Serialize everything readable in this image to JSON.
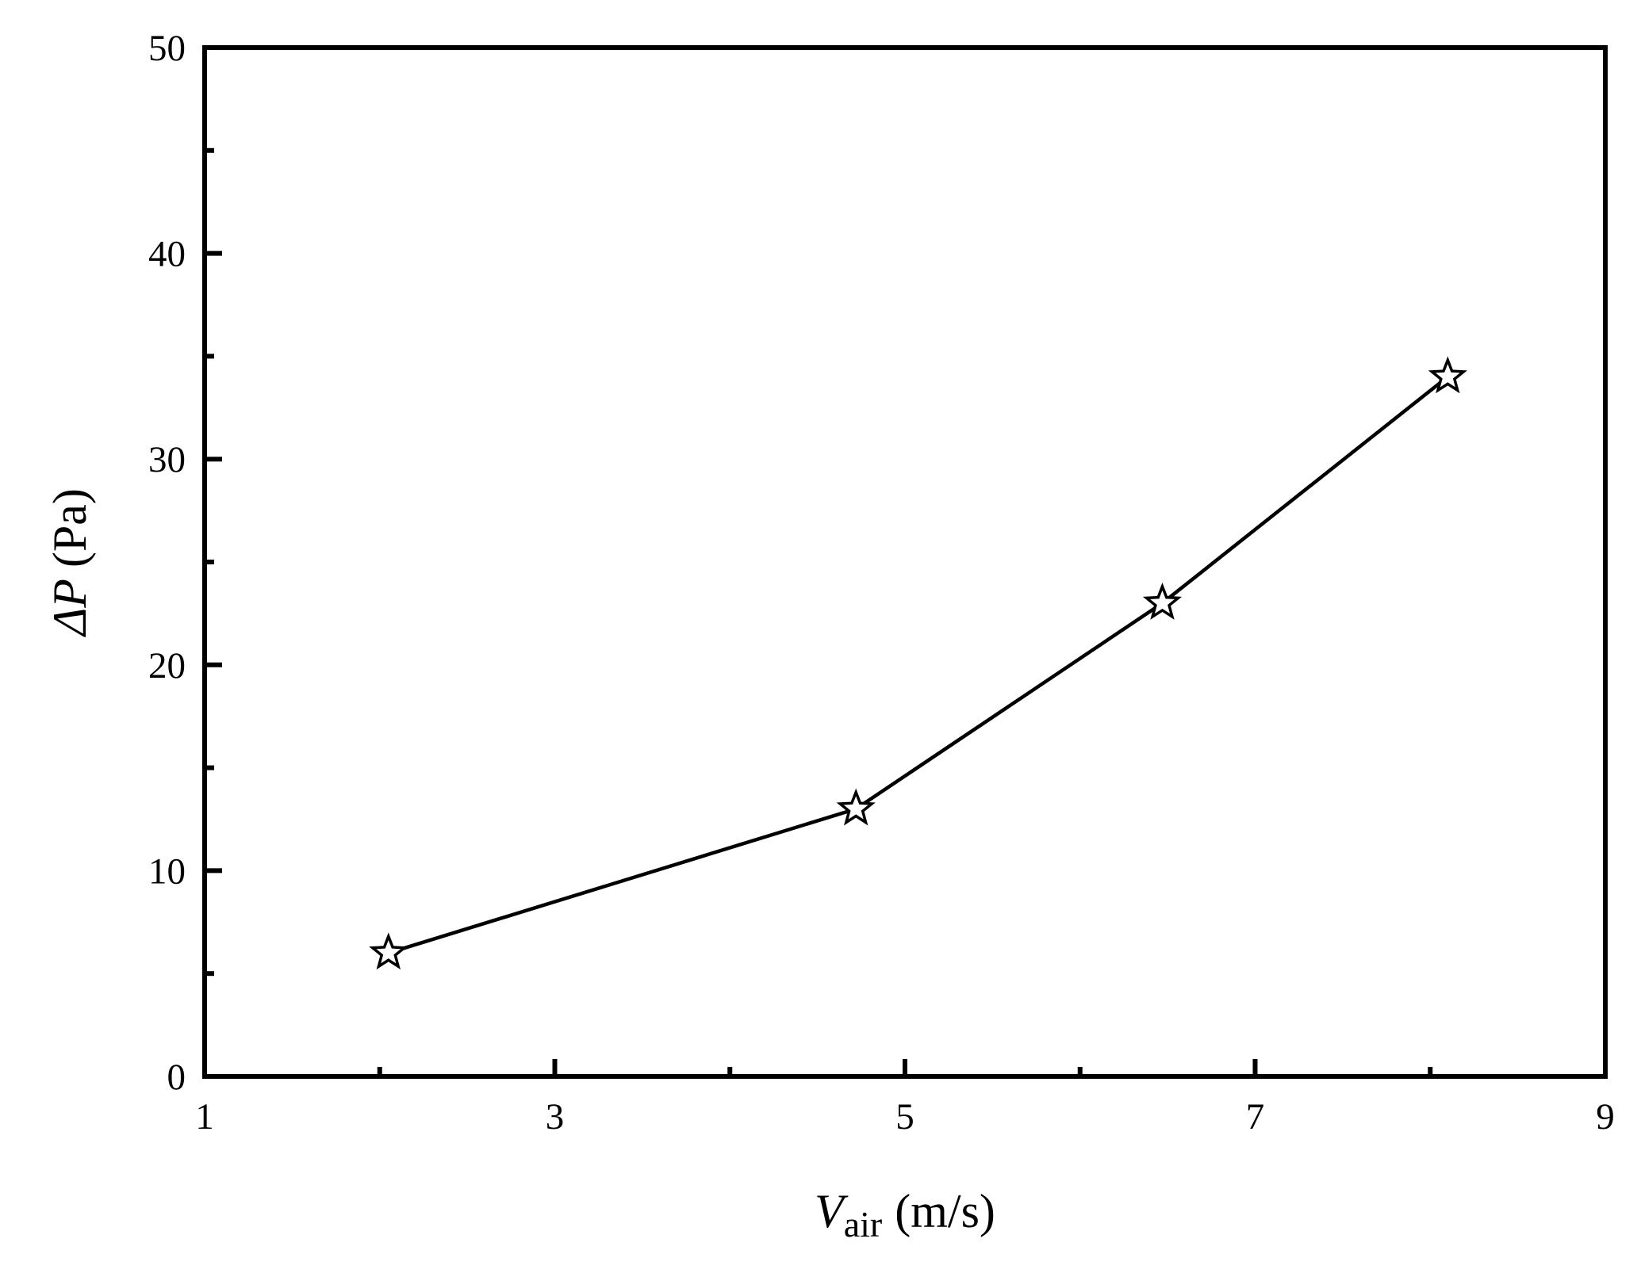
{
  "chart_data": {
    "type": "line",
    "title": "",
    "xlabel": {
      "symbol": "V",
      "subscript": "air",
      "unit": "(m/s)"
    },
    "ylabel": {
      "symbol": "ΔP",
      "unit": "(Pa)"
    },
    "xlim": [
      1,
      9
    ],
    "ylim": [
      0,
      50
    ],
    "x_major_ticks": [
      1,
      3,
      5,
      7,
      9
    ],
    "x_minor_ticks": [
      2,
      4,
      6,
      8
    ],
    "x_tick_labels": [
      "1",
      "3",
      "5",
      "7",
      "9"
    ],
    "y_major_ticks": [
      0,
      10,
      20,
      30,
      40,
      50
    ],
    "y_minor_ticks": [
      5,
      15,
      25,
      35,
      45
    ],
    "y_tick_labels": [
      "0",
      "10",
      "20",
      "30",
      "40",
      "50"
    ],
    "grid": false,
    "legend": "none",
    "series": [
      {
        "marker": "open-star",
        "color": "#000000",
        "x": [
          2.05,
          4.72,
          6.47,
          8.1
        ],
        "y": [
          6,
          13,
          23,
          34
        ]
      }
    ]
  }
}
